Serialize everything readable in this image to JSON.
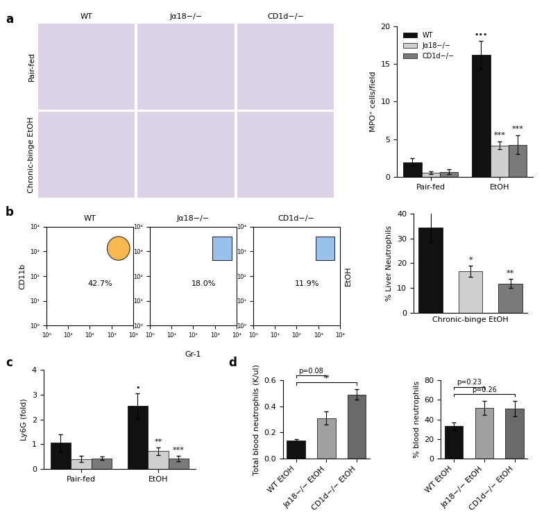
{
  "panel_labels": [
    "a",
    "b",
    "c",
    "d"
  ],
  "micrographs": {
    "columns": [
      "WT",
      "Jα18−/−",
      "CD1d−/−"
    ],
    "rows": [
      "Pair-fed",
      "Chronic-binge EtOH"
    ]
  },
  "flow_cytometry": {
    "condition": "EtOH",
    "xlabel": "Gr-1",
    "ylabel": "CD11b",
    "log": true,
    "xlim": [
      1,
      10000
    ],
    "ylim": [
      1,
      10000
    ],
    "xticks": [
      {
        "value": 1,
        "label": "10⁰"
      },
      {
        "value": 10,
        "label": "10¹"
      },
      {
        "value": 100,
        "label": "10²"
      },
      {
        "value": 1000,
        "label": "10³"
      },
      {
        "value": 10000,
        "label": "10⁴"
      }
    ],
    "yticks": [
      {
        "value": 1,
        "label": "10⁰"
      },
      {
        "value": 10,
        "label": "10¹"
      },
      {
        "value": 100,
        "label": "10²"
      },
      {
        "value": 1000,
        "label": "10³"
      },
      {
        "value": 10000,
        "label": "10⁴"
      }
    ],
    "plots": [
      {
        "title": "WT",
        "gate": "42.7%"
      },
      {
        "title": "Jα18−/−",
        "gate": "18.0%"
      },
      {
        "title": "CD1d−/−",
        "gate": "11.9%"
      }
    ]
  },
  "chart_data": [
    {
      "panel": "a",
      "type": "bar",
      "ylabel": "MPO⁺ cells/field",
      "categories": [
        "Pair-fed",
        "EtOH"
      ],
      "series": [
        {
          "name": "WT",
          "color": "#111111",
          "values": [
            2.0,
            16.2
          ],
          "errors": [
            0.5,
            1.8
          ],
          "significance": [
            null,
            "•••"
          ]
        },
        {
          "name": "Jα18−/−",
          "color": "#cfcfcf",
          "values": [
            0.6,
            4.2
          ],
          "errors": [
            0.2,
            0.5
          ],
          "significance": [
            null,
            "***"
          ]
        },
        {
          "name": "CD1d−/−",
          "color": "#7a7a7a",
          "values": [
            0.7,
            4.3
          ],
          "errors": [
            0.3,
            1.2
          ],
          "significance": [
            null,
            "***"
          ]
        }
      ],
      "ylim": [
        0,
        20
      ],
      "yticks": [
        0,
        5,
        10,
        15,
        20
      ],
      "legend": "upper left"
    },
    {
      "panel": "b",
      "type": "bar",
      "ylabel": "% Liver Neutrophils",
      "xlabel": "Chronic-binge EtOH",
      "categories": [
        null,
        null,
        null
      ],
      "values": [
        34.5,
        16.7,
        11.8
      ],
      "errors": [
        6.0,
        2.2,
        1.8
      ],
      "significance": [
        null,
        "*",
        "**"
      ],
      "colors": [
        "#111111",
        "#cfcfcf",
        "#7a7a7a"
      ],
      "ylim": [
        0,
        40
      ],
      "yticks": [
        0,
        10,
        20,
        30,
        40
      ],
      "tick_labels": "y"
    },
    {
      "panel": "c",
      "type": "bar",
      "ylabel": "Ly6G (fold)",
      "categories": [
        "Pair-fed",
        "EtOH"
      ],
      "series": [
        {
          "name": "WT",
          "color": "#111111",
          "values": [
            1.05,
            2.55
          ],
          "errors": [
            0.35,
            0.5
          ],
          "significance": [
            null,
            "•"
          ]
        },
        {
          "name": "Jα18−/−",
          "color": "#cfcfcf",
          "values": [
            0.4,
            0.72
          ],
          "errors": [
            0.12,
            0.15
          ],
          "significance": [
            null,
            "**"
          ]
        },
        {
          "name": "CD1d−/−",
          "color": "#7a7a7a",
          "values": [
            0.43,
            0.42
          ],
          "errors": [
            0.06,
            0.12
          ],
          "significance": [
            null,
            "***"
          ]
        }
      ],
      "ylim": [
        0,
        4
      ],
      "yticks": [
        0,
        1,
        2,
        3,
        4
      ]
    },
    {
      "panel": "d",
      "type": "bar",
      "ylabel": "Total blood neutrophils (K/ul)",
      "categories": [
        "WT EtOH",
        "Jα18−/− EtOH",
        "CD1d−/− EtOH"
      ],
      "values": [
        0.14,
        0.31,
        0.49
      ],
      "errors": [
        0.01,
        0.05,
        0.04
      ],
      "colors": [
        "#111111",
        "#a0a0a0",
        "#6a6a6a"
      ],
      "comparisons": [
        {
          "between": [
            "WT EtOH",
            "CD1d−/− EtOH"
          ],
          "label": "**"
        },
        {
          "between": [
            "WT EtOH",
            "Jα18−/− EtOH"
          ],
          "label": "p=0.08"
        }
      ],
      "ylim": [
        0,
        0.6
      ],
      "yticks": [
        {
          "value": 0,
          "label": "0.0"
        },
        0.2,
        0.4,
        0.6
      ]
    },
    {
      "panel": "d",
      "type": "bar",
      "ylabel": "% blood neutrophils",
      "categories": [
        "WT EtOH",
        "Jα18−/− EtOH",
        "CD1d−/− EtOH"
      ],
      "values": [
        33,
        52,
        51
      ],
      "errors": [
        4,
        7,
        8
      ],
      "colors": [
        "#111111",
        "#a0a0a0",
        "#6a6a6a"
      ],
      "comparisons": [
        {
          "between": [
            "WT EtOH",
            "CD1d−/− EtOH"
          ],
          "label": "p=0.26"
        },
        {
          "between": [
            "WT EtOH",
            "Jα18−/− EtOH"
          ],
          "label": "p=0.23"
        }
      ],
      "ylim": [
        0,
        80
      ],
      "yticks": [
        0,
        20,
        40,
        60,
        80
      ]
    }
  ]
}
